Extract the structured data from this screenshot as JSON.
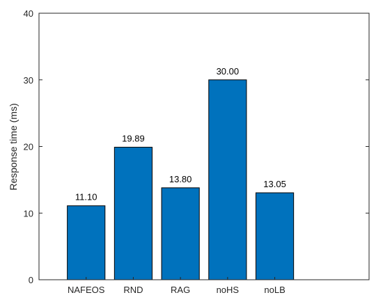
{
  "chart_data": {
    "type": "bar",
    "title": "",
    "xlabel": "",
    "ylabel": "Response time (ms)",
    "categories": [
      "NAFEOS",
      "RND",
      "RAG",
      "noHS",
      "noLB"
    ],
    "values": [
      11.1,
      19.89,
      13.8,
      30.0,
      13.05
    ],
    "value_labels": [
      "11.10",
      "19.89",
      "13.80",
      "30.00",
      "13.05"
    ],
    "ylim": [
      0,
      40
    ],
    "yticks": [
      0,
      10,
      20,
      30,
      40
    ],
    "xlim": [
      -1,
      6
    ],
    "grid": false,
    "box": true,
    "colors": {
      "bar": "#0072BD",
      "bar_edge": "#000000",
      "axis": "#262626"
    }
  }
}
